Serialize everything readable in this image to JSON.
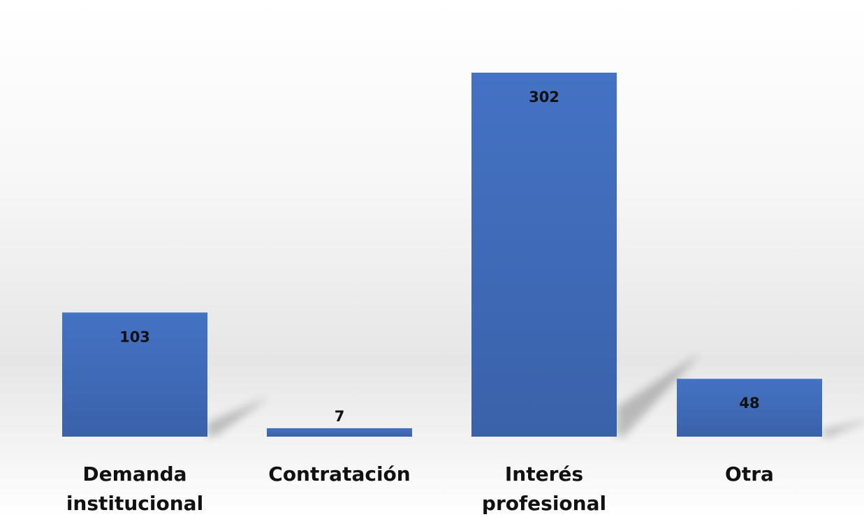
{
  "chart_data": {
    "type": "bar",
    "categories": [
      [
        "Demanda",
        "institucional"
      ],
      [
        "Contratación"
      ],
      [
        "Interés",
        "profesional"
      ],
      [
        "Otra"
      ]
    ],
    "values": [
      103,
      7,
      302,
      48
    ],
    "title": "",
    "xlabel": "",
    "ylabel": "",
    "ylim": [
      0,
      302
    ],
    "grid": false,
    "legend": "none",
    "bar_color": "#4472C4",
    "bar_color_dark": "#3A62AA"
  }
}
